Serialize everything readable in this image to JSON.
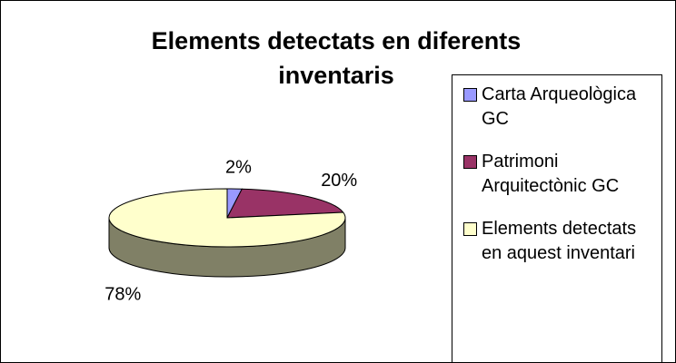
{
  "chart_data": {
    "type": "pie",
    "title": "Elements detectats en diferents inventaris",
    "categories": [
      "Carta Arqueològica GC",
      "Patrimoni Arquitectònic GC",
      "Elements detectats en aquest inventari"
    ],
    "values": [
      2,
      20,
      78
    ],
    "value_labels": [
      "2%",
      "20%",
      "78%"
    ],
    "colors": [
      "#9999ff",
      "#993366",
      "#ffffcc"
    ],
    "legend": "right"
  }
}
